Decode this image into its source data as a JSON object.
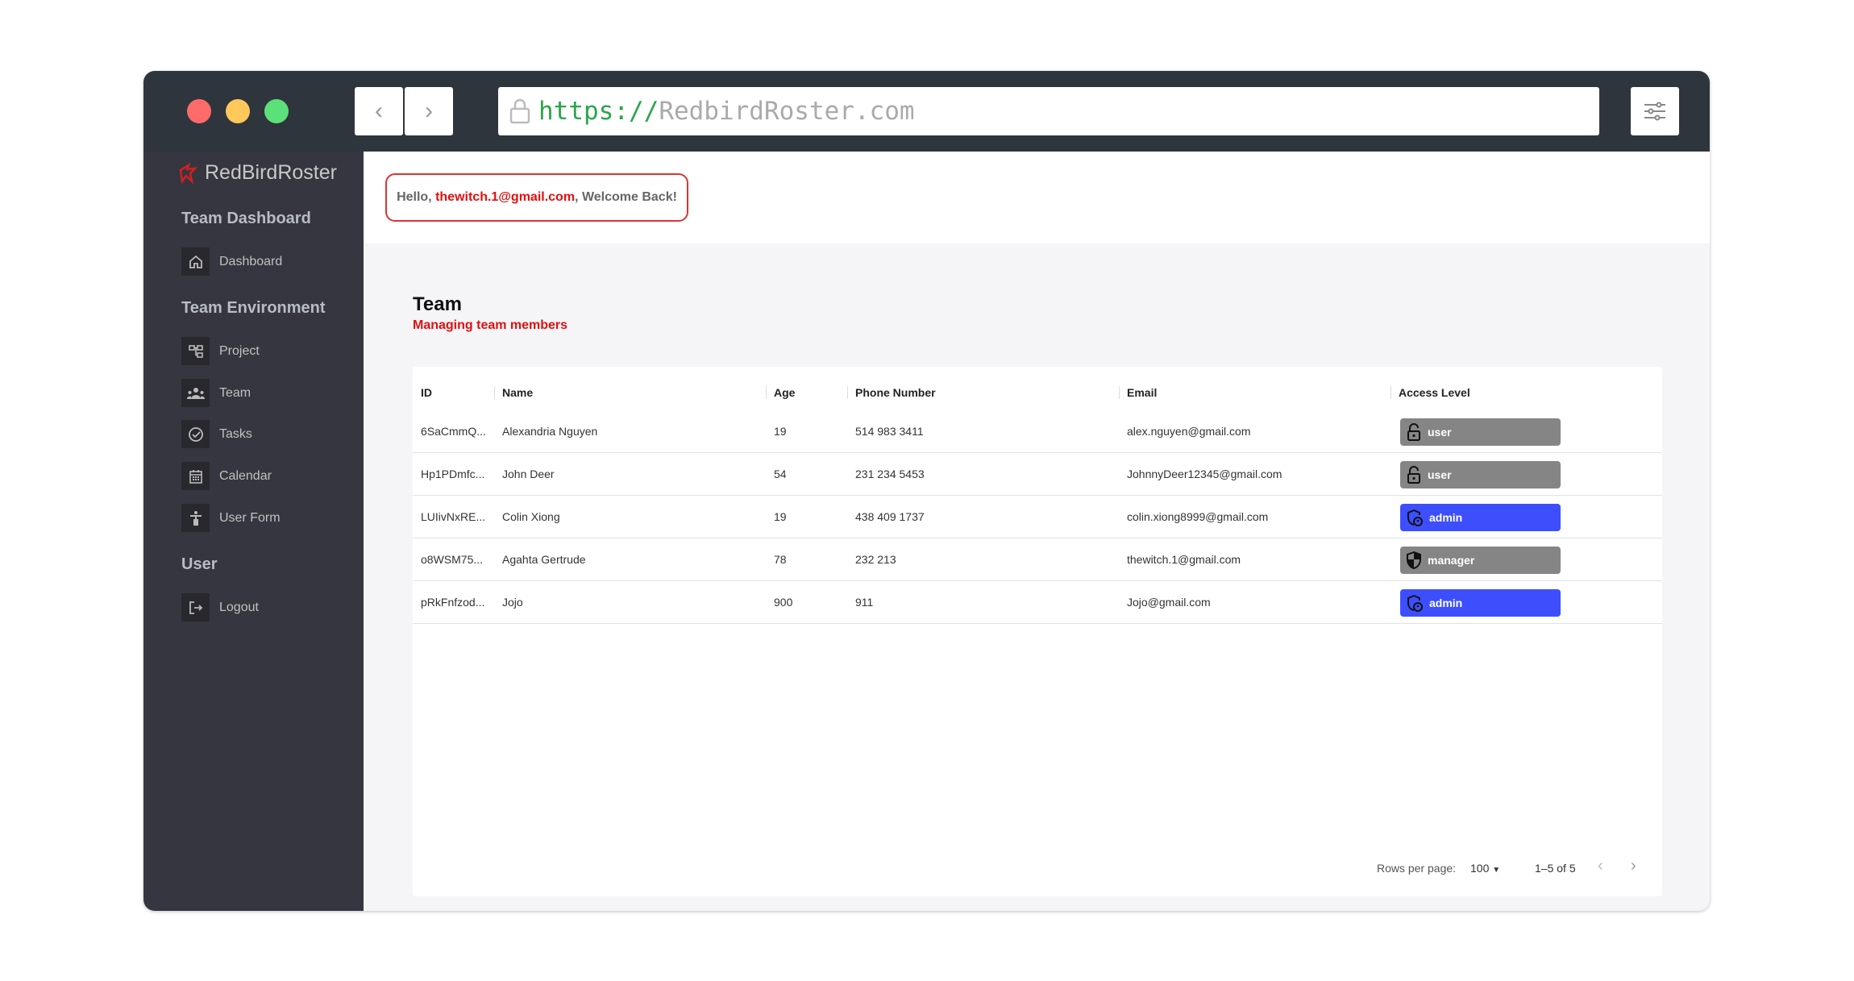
{
  "browser": {
    "url_protocol": "https://",
    "url_host": "RedbirdRoster.com",
    "traffic_lights": [
      "#ff6b6b",
      "#ffc85a",
      "#5be07a"
    ]
  },
  "brand": {
    "name": "RedBirdRoster",
    "color": "#e01010"
  },
  "sidebar": {
    "sections": [
      {
        "title": "Team Dashboard",
        "items": [
          {
            "label": "Dashboard",
            "icon": "home-icon"
          }
        ]
      },
      {
        "title": "Team Environment",
        "items": [
          {
            "label": "Project",
            "icon": "project-tree-icon"
          },
          {
            "label": "Team",
            "icon": "people-icon"
          },
          {
            "label": "Tasks",
            "icon": "check-circle-icon"
          },
          {
            "label": "Calendar",
            "icon": "calendar-icon"
          },
          {
            "label": "User Form",
            "icon": "accessibility-icon"
          }
        ]
      },
      {
        "title": "User",
        "items": [
          {
            "label": "Logout",
            "icon": "logout-icon"
          }
        ]
      }
    ]
  },
  "header": {
    "greeting_prefix": "Hello, ",
    "user_email": "thewitch.1@gmail.com",
    "greeting_suffix": ", Welcome Back!",
    "icons": [
      "bell-icon",
      "gear-icon",
      "person-icon"
    ]
  },
  "page": {
    "title": "Team",
    "subtitle": "Managing team members"
  },
  "table": {
    "columns": [
      "ID",
      "Name",
      "Age",
      "Phone Number",
      "Email",
      "Access Level"
    ],
    "rows": [
      {
        "id": "6SaCmmQ...",
        "name": "Alexandria Nguyen",
        "age": "19",
        "phone": "514 983 3411",
        "email": "alex.nguyen@gmail.com",
        "access": "user"
      },
      {
        "id": "Hp1PDmfc...",
        "name": "John Deer",
        "age": "54",
        "phone": "231 234 5453",
        "email": "JohnnyDeer12345@gmail.com",
        "access": "user"
      },
      {
        "id": "LUIivNxRE...",
        "name": "Colin Xiong",
        "age": "19",
        "phone": "438 409 1737",
        "email": "colin.xiong8999@gmail.com",
        "access": "admin"
      },
      {
        "id": "o8WSM75...",
        "name": "Agahta Gertrude",
        "age": "78",
        "phone": "232 213",
        "email": "thewitch.1@gmail.com",
        "access": "manager"
      },
      {
        "id": "pRkFnfzod...",
        "name": "Jojo",
        "age": "900",
        "phone": "911",
        "email": "Jojo@gmail.com",
        "access": "admin"
      }
    ]
  },
  "access_colors": {
    "admin": "#3d4ffd",
    "user": "#858585",
    "manager": "#858585"
  },
  "pagination": {
    "rows_per_page_label": "Rows per page:",
    "rows_per_page": "100",
    "range": "1–5 of 5"
  }
}
